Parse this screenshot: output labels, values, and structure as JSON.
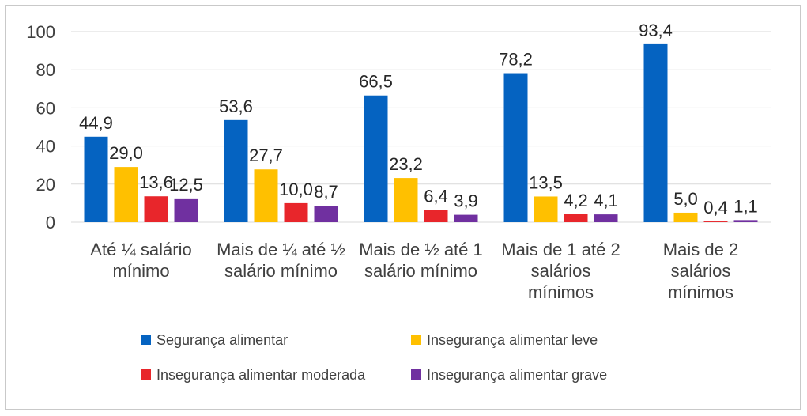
{
  "chart_data": {
    "type": "bar",
    "categories": [
      [
        "Até ¼ salário",
        "mínimo"
      ],
      [
        "Mais de ¼ até ½",
        "salário mínimo"
      ],
      [
        "Mais de ½ até 1",
        "salário mínimo"
      ],
      [
        "Mais de 1 até 2",
        "salários",
        "mínimos"
      ],
      [
        "Mais de 2",
        "salários",
        "mínimos"
      ]
    ],
    "series": [
      {
        "name": "Segurança alimentar",
        "color": "#0563C1",
        "values": [
          44.9,
          53.6,
          66.5,
          78.2,
          93.4
        ],
        "labels": [
          "44,9",
          "53,6",
          "66,5",
          "78,2",
          "93,4"
        ]
      },
      {
        "name": "Insegurança alimentar leve",
        "color": "#FFC000",
        "values": [
          29.0,
          27.7,
          23.2,
          13.5,
          5.0
        ],
        "labels": [
          "29,0",
          "27,7",
          "23,2",
          "13,5",
          "5,0"
        ]
      },
      {
        "name": "Insegurança alimentar moderada",
        "color": "#E8262B",
        "values": [
          13.6,
          10.0,
          6.4,
          4.2,
          0.4
        ],
        "labels": [
          "13,6",
          "10,0",
          "6,4",
          "4,2",
          "0,4"
        ]
      },
      {
        "name": "Insegurança alimentar grave",
        "color": "#7030A0",
        "values": [
          12.5,
          8.7,
          3.9,
          4.1,
          1.1
        ],
        "labels": [
          "12,5",
          "8,7",
          "3,9",
          "4,1",
          "1,1"
        ]
      }
    ],
    "ylim": [
      0,
      100
    ],
    "yticks": [
      "0",
      "20",
      "40",
      "60",
      "80",
      "100"
    ],
    "grid": true,
    "legend": "bottom"
  }
}
